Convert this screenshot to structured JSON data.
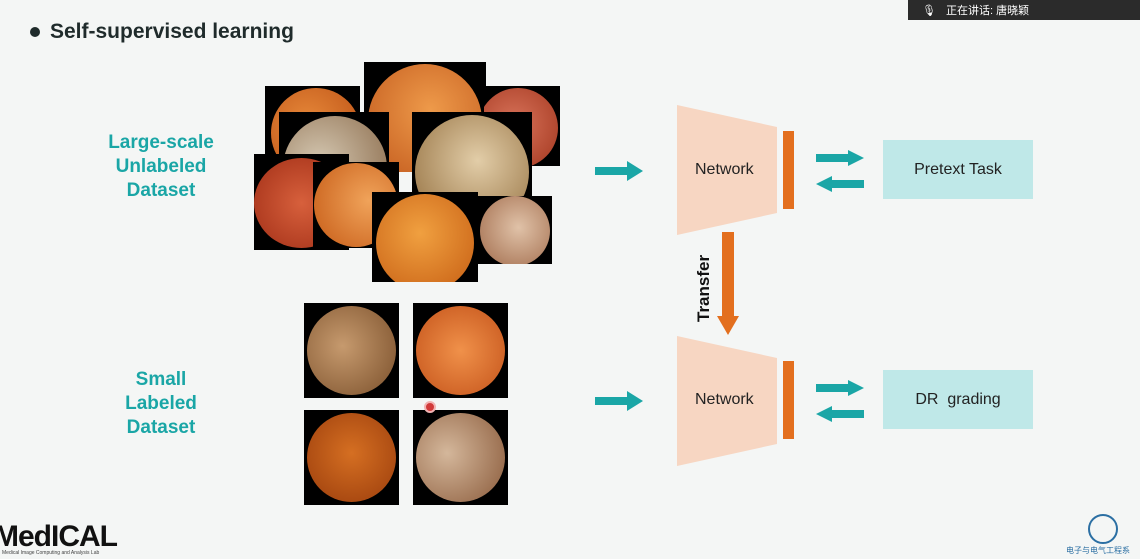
{
  "title": "Self-supervised learning",
  "top_banner": {
    "text": "正在讲话: 唐晓颖"
  },
  "labels": {
    "unlabeled": [
      "Large-scale",
      "Unlabeled",
      "Dataset"
    ],
    "labeled": [
      "Small",
      "Labeled",
      "Dataset"
    ]
  },
  "network_top": "Network",
  "network_bottom": "Network",
  "transfer": "Transfer",
  "pretext_task": "Pretext Task",
  "dr_grading": "DR  grading",
  "logo": {
    "text": "MedICAL",
    "sub": "Medical Image Computing and Analysis Lab"
  },
  "footer_cn": "电子与电气工程系",
  "colors": {
    "teal": "#1aa6a6",
    "orange": "#e36f1e",
    "peach": "#f7d6c2",
    "box": "#bfe8e8"
  }
}
